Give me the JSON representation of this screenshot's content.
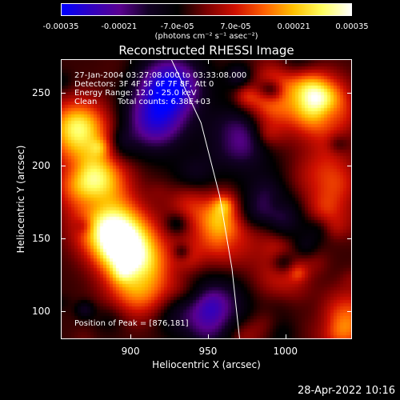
{
  "chart_data": {
    "type": "heatmap",
    "title": "Reconstructed RHESSI Image",
    "xlabel": "Heliocentric X (arcsec)",
    "ylabel": "Heliocentric Y (arcsec)",
    "xlim": [
      855,
      1043
    ],
    "ylim": [
      81,
      273
    ],
    "xticks": [
      "900",
      "950",
      "1000"
    ],
    "xtick_values": [
      900,
      950,
      1000
    ],
    "yticks": [
      "250",
      "200",
      "150",
      "100"
    ],
    "ytick_values": [
      250,
      200,
      150,
      100
    ],
    "colorbar": {
      "tick_labels": [
        "-0.00035",
        "-0.00021",
        "-7.0e-05",
        "7.0e-05",
        "0.00021",
        "0.00035"
      ],
      "tick_values": [
        -0.00035,
        -0.00021,
        -7e-05,
        7e-05,
        0.00021,
        0.00035
      ],
      "range": [
        -0.00035,
        0.00035
      ],
      "units": "(photons cm⁻² s⁻¹ asec⁻²)",
      "colors": [
        "#0000ff",
        "#3000c0",
        "#5a0090",
        "#120024",
        "#000000",
        "#7a0000",
        "#d01000",
        "#ff6000",
        "#ffc000",
        "#ffff60",
        "#ffffff"
      ]
    },
    "annotations": {
      "time_range": "27-Jan-2004 03:27:08.000 to 03:33:08.000",
      "detectors": "Detectors: 3F 4F 5F 6F 7F 8F, Att 0",
      "energy": "Energy Range: 12.0 - 25.0 keV",
      "method": "Clean",
      "total_counts": "Total counts: 6.38E+03",
      "peak": "Position of Peak = [876,181]"
    },
    "limb": [
      [
        926,
        273
      ],
      [
        945,
        230
      ],
      [
        957,
        180
      ],
      [
        965,
        130
      ],
      [
        970,
        81
      ]
    ],
    "bright_regions": [
      {
        "x": 875,
        "y": 190,
        "intensity": 0.00035
      },
      {
        "x": 866,
        "y": 225,
        "intensity": 0.00028
      },
      {
        "x": 884,
        "y": 160,
        "intensity": 0.00026
      },
      {
        "x": 895,
        "y": 150,
        "intensity": 0.00022
      },
      {
        "x": 905,
        "y": 135,
        "intensity": 0.0002
      },
      {
        "x": 905,
        "y": 115,
        "intensity": 0.00018
      },
      {
        "x": 960,
        "y": 155,
        "intensity": 0.00022
      },
      {
        "x": 990,
        "y": 250,
        "intensity": 0.0002
      },
      {
        "x": 1020,
        "y": 240,
        "intensity": 0.00025
      },
      {
        "x": 1025,
        "y": 190,
        "intensity": 0.00016
      },
      {
        "x": 1038,
        "y": 95,
        "intensity": 0.00018
      },
      {
        "x": 1000,
        "y": 125,
        "intensity": 0.00012
      }
    ],
    "dim_regions": [
      {
        "x": 925,
        "y": 255,
        "intensity": -0.0003
      },
      {
        "x": 915,
        "y": 230,
        "intensity": -0.00022
      },
      {
        "x": 970,
        "y": 220,
        "intensity": -0.0002
      },
      {
        "x": 955,
        "y": 105,
        "intensity": -0.00015
      },
      {
        "x": 990,
        "y": 175,
        "intensity": -0.00012
      }
    ]
  },
  "footer": {
    "timestamp": "28-Apr-2022 10:16"
  }
}
